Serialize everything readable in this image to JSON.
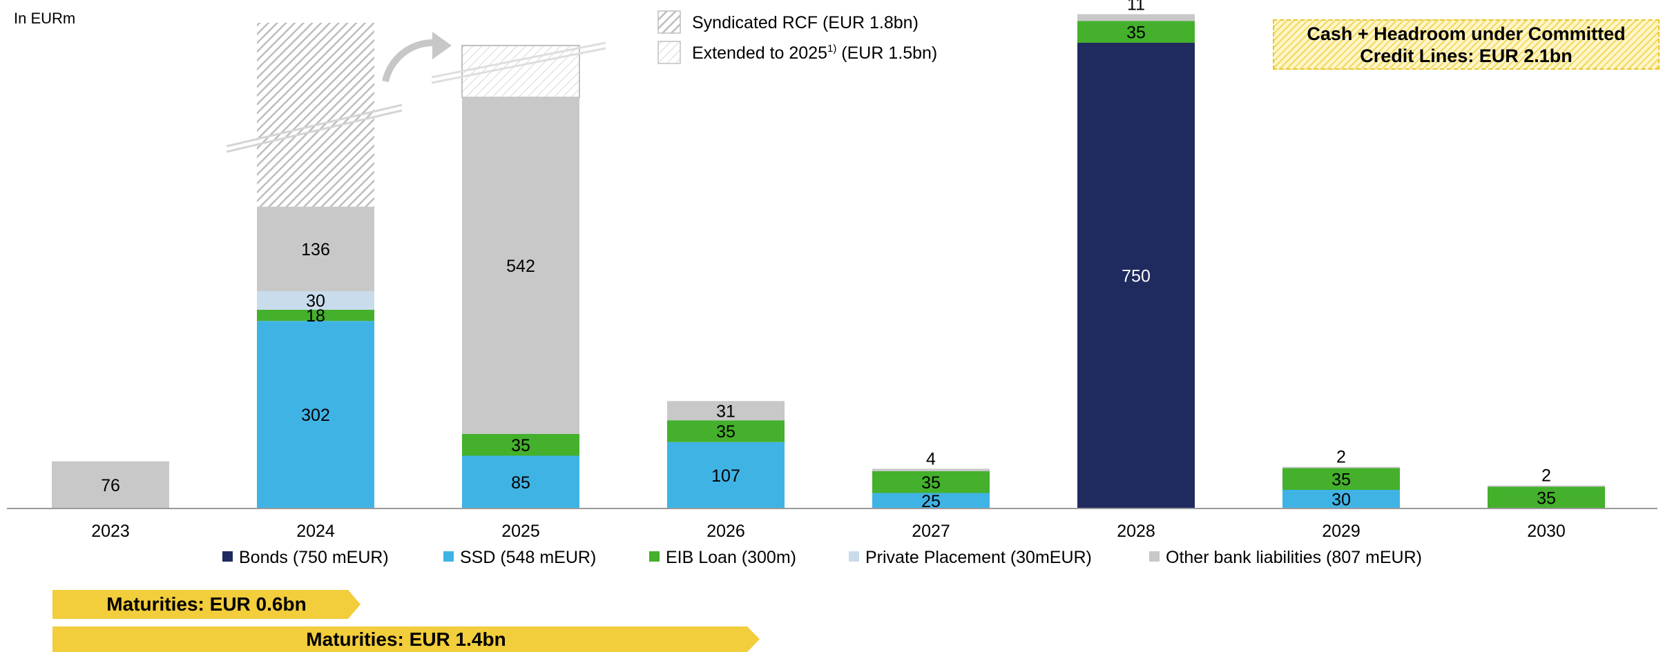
{
  "unit_label": "In EURm",
  "headroom_box": "Cash + Headroom under Committed Credit Lines: EUR 2.1bn",
  "maturity_bars": [
    {
      "label": "Maturities: EUR 0.6bn"
    },
    {
      "label": "Maturities: EUR 1.4bn"
    }
  ],
  "colors": {
    "bonds": "#1f2a5f",
    "ssd": "#40b3e5",
    "eib": "#44b02c",
    "private_placement": "#c9dcec",
    "other_bank": "#c8c8c8",
    "rcf_hatch": "#bdbdbd",
    "maturity": "#f2cd3c"
  },
  "chart_data": {
    "type": "bar",
    "stacked": true,
    "categories": [
      "2023",
      "2024",
      "2025",
      "2026",
      "2027",
      "2028",
      "2029",
      "2030"
    ],
    "series": [
      {
        "key": "ssd",
        "name": "SSD (548 mEUR)",
        "values": [
          0,
          302,
          85,
          107,
          25,
          0,
          30,
          0
        ]
      },
      {
        "key": "bonds",
        "name": "Bonds (750 mEUR)",
        "values": [
          0,
          0,
          0,
          0,
          0,
          750,
          0,
          0
        ]
      },
      {
        "key": "eib",
        "name": "EIB Loan (300m)",
        "values": [
          0,
          18,
          35,
          35,
          35,
          35,
          35,
          35
        ]
      },
      {
        "key": "private_placement",
        "name": "Private Placement (30mEUR)",
        "values": [
          0,
          30,
          0,
          0,
          0,
          0,
          0,
          0
        ]
      },
      {
        "key": "other_bank",
        "name": "Other bank liabilities (807 mEUR)",
        "values": [
          76,
          136,
          542,
          31,
          4,
          11,
          2,
          2
        ]
      }
    ],
    "legend_order": [
      "bonds",
      "ssd",
      "eib",
      "private_placement",
      "other_bank"
    ],
    "legend_position": "bottom",
    "rcf": [
      {
        "label": "Syndicated RCF (EUR 1.8bn)",
        "category": "2024"
      },
      {
        "label": "Extended to 2025",
        "superscript": "1)",
        "label_suffix": " (EUR 1.5bn)",
        "category": "2025"
      }
    ]
  }
}
